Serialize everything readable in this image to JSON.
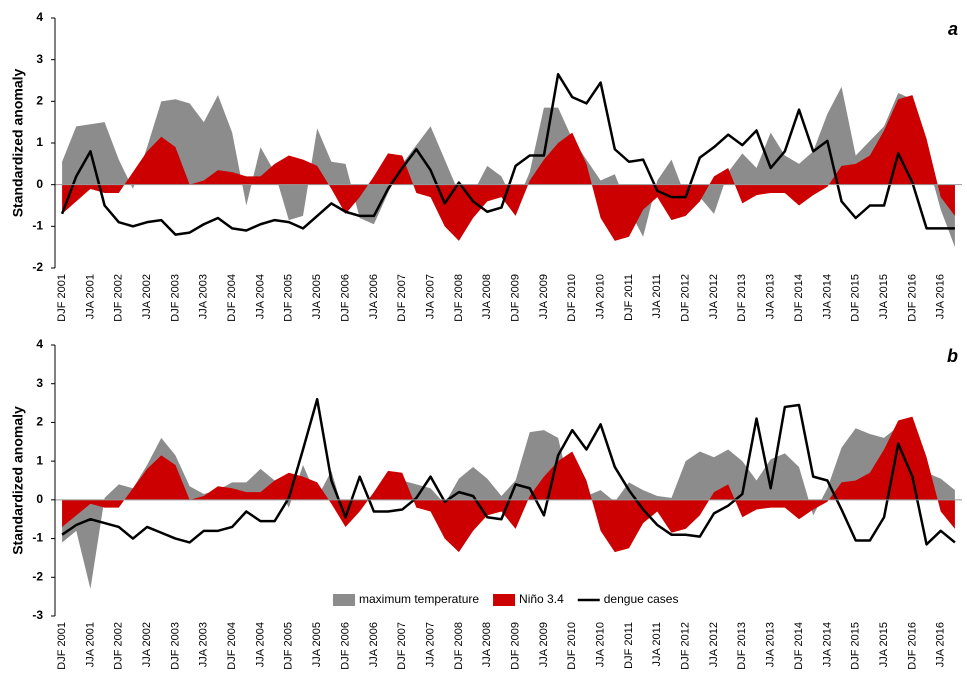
{
  "chart_data": [
    {
      "type": "area",
      "panel_label": "a",
      "ylabel": "Standardized anomaly",
      "categories": [
        "DJF 2001",
        null,
        "JJA 2001",
        null,
        "DJF 2002",
        null,
        "JJA 2002",
        null,
        "DJF 2003",
        null,
        "JJA 2003",
        null,
        "DJF 2004",
        null,
        "JJA 2004",
        null,
        "DJF 2005",
        null,
        "JJA 2005",
        null,
        "DJF 2006",
        null,
        "JJA 2006",
        null,
        "DJF 2007",
        null,
        "JJA 2007",
        null,
        "DJF 2008",
        null,
        "JJA 2008",
        null,
        "DJF 2009",
        null,
        "JJA 2009",
        null,
        "DJF 2010",
        null,
        "JJA 2010",
        null,
        "DJF 2011",
        null,
        "JJA 2011",
        null,
        "DJF 2012",
        null,
        "JJA 2012",
        null,
        "DJF 2013",
        null,
        "JJA 2013",
        null,
        "DJF 2014",
        null,
        "JJA 2014",
        null,
        "DJF 2015",
        null,
        "JJA 2015",
        null,
        "DJF 2016",
        null,
        "JJA 2016",
        null
      ],
      "ylim": [
        -2,
        4
      ],
      "yticks": [
        -2,
        -1,
        0,
        1,
        2,
        3,
        4
      ],
      "series": [
        {
          "type": "area",
          "color": "#8c8c8c",
          "values": [
            0.55,
            1.4,
            1.45,
            1.5,
            0.6,
            -0.1,
            0.9,
            2.0,
            2.05,
            1.95,
            1.5,
            2.15,
            1.25,
            -0.5,
            0.9,
            0.3,
            -0.85,
            -0.75,
            1.35,
            0.55,
            0.5,
            -0.8,
            -0.95,
            -0.2,
            0.5,
            0.95,
            1.4,
            0.6,
            -0.2,
            -0.2,
            0.45,
            0.2,
            -0.5,
            0.3,
            1.85,
            1.85,
            1.1,
            0.6,
            0.1,
            0.25,
            -0.6,
            -1.25,
            0.1,
            0.6,
            -0.3,
            -0.3,
            -0.7,
            0.3,
            0.75,
            0.4,
            1.25,
            0.7,
            0.5,
            0.8,
            1.7,
            2.35,
            0.7,
            1.05,
            1.4,
            2.2,
            2.05,
            0.65,
            -0.6,
            -1.5
          ]
        },
        {
          "type": "area",
          "color": "#cc0000",
          "values": [
            -0.7,
            -0.4,
            -0.1,
            -0.2,
            -0.2,
            0.3,
            0.8,
            1.15,
            0.9,
            0.0,
            0.1,
            0.35,
            0.3,
            0.2,
            0.2,
            0.5,
            0.7,
            0.6,
            0.45,
            -0.1,
            -0.7,
            -0.3,
            0.2,
            0.75,
            0.7,
            -0.2,
            -0.3,
            -1.0,
            -1.35,
            -0.8,
            -0.4,
            -0.3,
            -0.75,
            0.1,
            0.6,
            1.0,
            1.25,
            0.5,
            -0.8,
            -1.35,
            -1.25,
            -0.6,
            -0.3,
            -0.85,
            -0.75,
            -0.4,
            0.2,
            0.4,
            -0.45,
            -0.25,
            -0.2,
            -0.2,
            -0.5,
            -0.25,
            -0.05,
            0.45,
            0.5,
            0.7,
            1.3,
            2.05,
            2.15,
            1.1,
            -0.3,
            -0.75
          ]
        },
        {
          "type": "line",
          "color": "#000000",
          "values": [
            -0.7,
            0.2,
            0.8,
            -0.5,
            -0.9,
            -1.0,
            -0.9,
            -0.85,
            -1.2,
            -1.15,
            -0.95,
            -0.8,
            -1.05,
            -1.1,
            -0.95,
            -0.85,
            -0.9,
            -1.05,
            -0.75,
            -0.45,
            -0.65,
            -0.75,
            -0.75,
            -0.1,
            0.4,
            0.85,
            0.35,
            -0.45,
            0.05,
            -0.4,
            -0.65,
            -0.55,
            0.45,
            0.7,
            0.7,
            2.65,
            2.1,
            1.95,
            2.45,
            0.85,
            0.55,
            0.6,
            -0.15,
            -0.3,
            -0.3,
            0.65,
            0.9,
            1.2,
            0.95,
            1.3,
            0.4,
            0.8,
            1.8,
            0.8,
            1.05,
            -0.4,
            -0.8,
            -0.5,
            -0.5,
            0.75,
            0.05,
            -1.05,
            -1.05,
            -1.05
          ]
        }
      ]
    },
    {
      "type": "area",
      "panel_label": "b",
      "ylabel": "Standardized anomaly",
      "legend": "bottom",
      "categories": [
        "DJF 2001",
        null,
        "JJA 2001",
        null,
        "DJF 2002",
        null,
        "JJA 2002",
        null,
        "DJF 2003",
        null,
        "JJA 2003",
        null,
        "DJF 2004",
        null,
        "JJA 2004",
        null,
        "DJF 2005",
        null,
        "JJA 2005",
        null,
        "DJF 2006",
        null,
        "JJA 2006",
        null,
        "DJF 2007",
        null,
        "JJA 2007",
        null,
        "DJF 2008",
        null,
        "JJA 2008",
        null,
        "DJF 2009",
        null,
        "JJA 2009",
        null,
        "DJF 2010",
        null,
        "JJA 2010",
        null,
        "DJF 2011",
        null,
        "JJA 2011",
        null,
        "DJF 2012",
        null,
        "JJA 2012",
        null,
        "DJF 2013",
        null,
        "JJA 2013",
        null,
        "DJF 2014",
        null,
        "JJA 2014",
        null,
        "DJF 2015",
        null,
        "JJA 2015",
        null,
        "DJF 2016",
        null,
        "JJA 2016",
        null
      ],
      "ylim": [
        -3,
        4
      ],
      "yticks": [
        -3,
        -2,
        -1,
        0,
        1,
        2,
        3,
        4
      ],
      "series": [
        {
          "name": "maximum temperature",
          "type": "area",
          "color": "#8c8c8c",
          "values": [
            -1.1,
            -0.8,
            -2.3,
            0.05,
            0.4,
            0.3,
            0.9,
            1.6,
            1.15,
            0.35,
            0.15,
            0.25,
            0.45,
            0.45,
            0.8,
            0.5,
            -0.2,
            0.9,
            0.05,
            0.75,
            -0.5,
            0.0,
            0.0,
            0.6,
            0.5,
            0.4,
            0.3,
            -0.1,
            0.55,
            0.85,
            0.55,
            0.1,
            0.5,
            1.75,
            1.8,
            1.6,
            0.05,
            0.1,
            0.25,
            -0.05,
            0.45,
            0.25,
            0.1,
            0.05,
            1.0,
            1.25,
            1.1,
            1.3,
            1.0,
            0.5,
            1.05,
            1.2,
            0.85,
            -0.4,
            0.3,
            1.35,
            1.85,
            1.7,
            1.6,
            1.9,
            0.65,
            0.7,
            0.55,
            0.25
          ]
        },
        {
          "name": "Niño 3.4",
          "type": "area",
          "color": "#cc0000",
          "values": [
            -0.7,
            -0.4,
            -0.1,
            -0.2,
            -0.2,
            0.3,
            0.8,
            1.15,
            0.9,
            0.0,
            0.1,
            0.35,
            0.3,
            0.2,
            0.2,
            0.5,
            0.7,
            0.6,
            0.45,
            -0.1,
            -0.7,
            -0.3,
            0.2,
            0.75,
            0.7,
            -0.2,
            -0.3,
            -1.0,
            -1.35,
            -0.8,
            -0.4,
            -0.3,
            -0.75,
            0.1,
            0.6,
            1.0,
            1.25,
            0.5,
            -0.8,
            -1.35,
            -1.25,
            -0.6,
            -0.3,
            -0.85,
            -0.75,
            -0.4,
            0.2,
            0.4,
            -0.45,
            -0.25,
            -0.2,
            -0.2,
            -0.5,
            -0.25,
            -0.05,
            0.45,
            0.5,
            0.7,
            1.3,
            2.05,
            2.15,
            1.1,
            -0.3,
            -0.75
          ]
        },
        {
          "name": "dengue cases",
          "type": "line",
          "color": "#000000",
          "values": [
            -0.9,
            -0.65,
            -0.5,
            -0.6,
            -0.7,
            -1.0,
            -0.7,
            -0.85,
            -1.0,
            -1.1,
            -0.8,
            -0.8,
            -0.7,
            -0.3,
            -0.55,
            -0.55,
            0.05,
            1.3,
            2.6,
            0.5,
            -0.45,
            0.6,
            -0.3,
            -0.3,
            -0.25,
            0.05,
            0.6,
            -0.05,
            0.2,
            0.1,
            -0.45,
            -0.5,
            0.4,
            0.3,
            -0.4,
            1.15,
            1.8,
            1.3,
            1.95,
            0.85,
            0.25,
            -0.25,
            -0.65,
            -0.9,
            -0.9,
            -0.95,
            -0.35,
            -0.15,
            0.15,
            2.1,
            0.3,
            2.4,
            2.45,
            0.6,
            0.5,
            -0.25,
            -1.05,
            -1.05,
            -0.45,
            1.45,
            0.6,
            -1.15,
            -0.8,
            -1.1
          ]
        }
      ]
    }
  ]
}
